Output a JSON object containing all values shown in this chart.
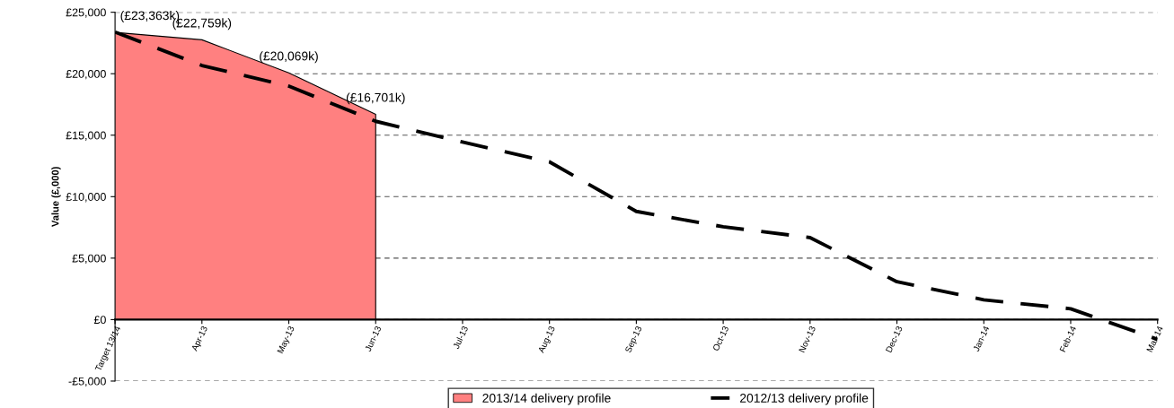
{
  "chart_data": {
    "type": "area",
    "ylabel": "Value (£,000)",
    "categories": [
      "Target 13/14",
      "Apr-13",
      "May-13",
      "Jun-13",
      "Jul-13",
      "Aug-13",
      "Sep-13",
      "Oct-13",
      "Nov-13",
      "Dec-13",
      "Jan-14",
      "Feb-14",
      "Mar-14"
    ],
    "series": [
      {
        "name": "2013/14 delivery profile",
        "color": "#ff8080",
        "values": [
          23363,
          22759,
          20069,
          16701,
          null,
          null,
          null,
          null,
          null,
          null,
          null,
          null,
          null
        ],
        "value_labels": [
          "(£23,363k)",
          "(£22,759k)",
          "(£20,069k)",
          "(£16,701k)",
          null,
          null,
          null,
          null,
          null,
          null,
          null,
          null,
          null
        ]
      },
      {
        "name": "2012/13 delivery profile",
        "type": "line",
        "color": "#000000",
        "line_style": "dashed",
        "values": [
          23390,
          20670,
          18990,
          16130,
          14440,
          12830,
          8800,
          7550,
          6670,
          3080,
          1610,
          880,
          -1610
        ]
      }
    ],
    "ylim": [
      -5000,
      25000
    ],
    "yticks": [
      {
        "value": -5000,
        "label": "-£5,000"
      },
      {
        "value": 0,
        "label": "£0"
      },
      {
        "value": 5000,
        "label": "£5,000"
      },
      {
        "value": 10000,
        "label": "£10,000"
      },
      {
        "value": 15000,
        "label": "£15,000"
      },
      {
        "value": 20000,
        "label": "£20,000"
      },
      {
        "value": 25000,
        "label": "£25,000"
      }
    ],
    "grid": "y",
    "legend": "bottom"
  }
}
